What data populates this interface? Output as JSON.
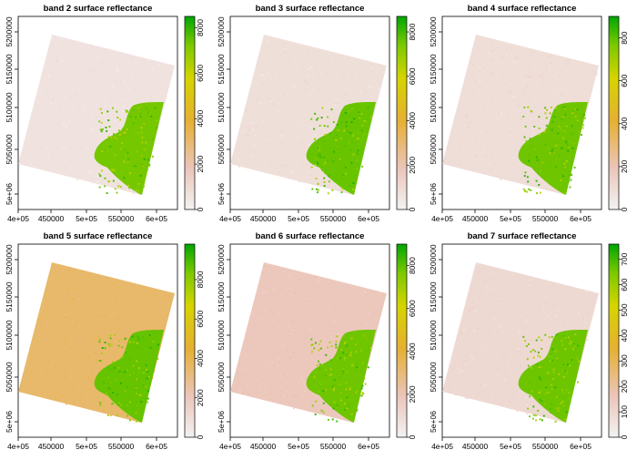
{
  "chart_data": [
    {
      "type": "heatmap",
      "title": "band 2 surface reflectance",
      "xlabel": "",
      "ylabel": "",
      "x_ticks": [
        "4e+05",
        "450000",
        "5e+05",
        "550000",
        "6e+05"
      ],
      "y_ticks": [
        "5e+06",
        "5050000",
        "5100000",
        "5150000",
        "5200000"
      ],
      "legend_ticks": [
        "0",
        "2000",
        "4000",
        "6000",
        "8000"
      ],
      "legend_max": 8500,
      "values_range": [
        0,
        8500
      ],
      "background_level": 600,
      "vegetation_level": 7300,
      "colors": {
        "low": "#F2F2F2",
        "high": "#00A600"
      }
    },
    {
      "type": "heatmap",
      "title": "band 3 surface reflectance",
      "xlabel": "",
      "ylabel": "",
      "x_ticks": [
        "4e+05",
        "450000",
        "5e+05",
        "550000",
        "6e+05"
      ],
      "y_ticks": [
        "5e+06",
        "5050000",
        "5100000",
        "5150000",
        "5200000"
      ],
      "legend_ticks": [
        "0",
        "2000",
        "4000",
        "6000",
        "8000"
      ],
      "legend_max": 8700,
      "values_range": [
        0,
        8700
      ],
      "background_level": 800,
      "vegetation_level": 7600,
      "colors": {
        "low": "#F2F2F2",
        "high": "#00A600"
      }
    },
    {
      "type": "heatmap",
      "title": "band 4 surface reflectance",
      "xlabel": "",
      "ylabel": "",
      "x_ticks": [
        "4e+05",
        "450000",
        "5e+05",
        "550000",
        "6e+05"
      ],
      "y_ticks": [
        "5e+06",
        "5050000",
        "5100000",
        "5150000",
        "5200000"
      ],
      "legend_ticks": [
        "0",
        "200",
        "400",
        "600",
        "800"
      ],
      "legend_max": 900,
      "values_range": [
        0,
        900
      ],
      "background_level": 90,
      "vegetation_level": 780,
      "colors": {
        "low": "#F2F2F2",
        "high": "#00A600"
      }
    },
    {
      "type": "heatmap",
      "title": "band 5 surface reflectance",
      "xlabel": "",
      "ylabel": "",
      "x_ticks": [
        "4e+05",
        "450000",
        "5e+05",
        "550000",
        "6e+05"
      ],
      "y_ticks": [
        "5e+06",
        "5050000",
        "5100000",
        "5150000",
        "5200000"
      ],
      "legend_ticks": [
        "0",
        "2000",
        "4000",
        "6000",
        "8000"
      ],
      "legend_max": 9800,
      "values_range": [
        0,
        9800
      ],
      "background_level": 3500,
      "vegetation_level": 8600,
      "colors": {
        "low": "#F2F2F2",
        "high": "#00A600"
      }
    },
    {
      "type": "heatmap",
      "title": "band 6 surface reflectance",
      "xlabel": "",
      "ylabel": "",
      "x_ticks": [
        "4e+05",
        "450000",
        "5e+05",
        "550000",
        "6e+05"
      ],
      "y_ticks": [
        "5e+06",
        "5050000",
        "5100000",
        "5150000",
        "5200000"
      ],
      "legend_ticks": [
        "0",
        "2000",
        "4000",
        "6000",
        "8000"
      ],
      "legend_max": 9000,
      "values_range": [
        0,
        9000
      ],
      "background_level": 1800,
      "vegetation_level": 7800,
      "colors": {
        "low": "#F2F2F2",
        "high": "#00A600"
      }
    },
    {
      "type": "heatmap",
      "title": "band 7 surface reflectance",
      "xlabel": "",
      "ylabel": "",
      "x_ticks": [
        "4e+05",
        "450000",
        "5e+05",
        "550000",
        "6e+05"
      ],
      "y_ticks": [
        "5e+06",
        "5050000",
        "5100000",
        "5150000",
        "5200000"
      ],
      "legend_ticks": [
        "0",
        "100",
        "200",
        "300",
        "400",
        "500",
        "600",
        "700"
      ],
      "legend_max": 760,
      "values_range": [
        0,
        760
      ],
      "background_level": 90,
      "vegetation_level": 660,
      "colors": {
        "low": "#F2F2F2",
        "high": "#00A600"
      }
    }
  ]
}
